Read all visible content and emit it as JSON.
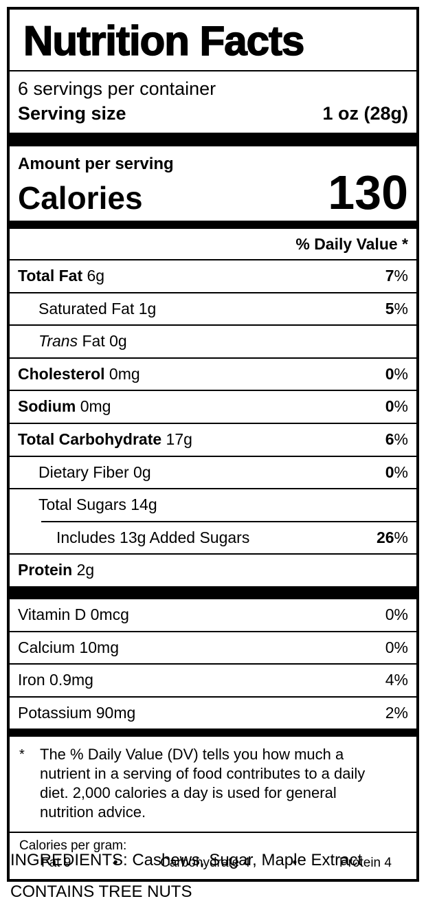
{
  "label": {
    "title": "Nutrition Facts",
    "servings_per_container": "6 servings per container",
    "serving_size": {
      "label": "Serving size",
      "value": "1 oz (28g)"
    },
    "amount_per_serving": "Amount per serving",
    "calories": {
      "label": "Calories",
      "value": "130"
    },
    "daily_value_header": "% Daily Value *",
    "percent_sign": "%",
    "nutrients": [
      {
        "name": "Total Fat",
        "amount": "6g",
        "dv": "7"
      },
      {
        "name": "Saturated Fat",
        "amount": "1g",
        "dv": "5"
      },
      {
        "name_italic": "Trans",
        "name": "Fat",
        "amount": "0g"
      },
      {
        "name": "Cholesterol",
        "amount": "0mg",
        "dv": "0"
      },
      {
        "name": "Sodium",
        "amount": "0mg",
        "dv": "0"
      },
      {
        "name": "Total Carbohydrate",
        "amount": "17g",
        "dv": "6"
      },
      {
        "name": "Dietary Fiber",
        "amount": "0g",
        "dv": "0"
      },
      {
        "name": "Total Sugars",
        "amount": "14g"
      },
      {
        "name": "Includes 13g Added Sugars",
        "dv": "26"
      },
      {
        "name": "Protein",
        "amount": "2g"
      }
    ],
    "vitamins": [
      {
        "name": "Vitamin D",
        "amount": "0mcg",
        "dv": "0"
      },
      {
        "name": "Calcium",
        "amount": "10mg",
        "dv": "0"
      },
      {
        "name": "Iron",
        "amount": "0.9mg",
        "dv": "4"
      },
      {
        "name": "Potassium",
        "amount": "90mg",
        "dv": "2"
      }
    ],
    "footnote": {
      "marker": "*",
      "text": "The % Daily Value (DV) tells you how much a nutrient in a serving of food contributes to a daily diet. 2,000 calories a day is used for general nutrition advice."
    },
    "calories_per_gram": {
      "label": "Calories per gram:",
      "fat": "Fat 9",
      "bullet1": "•",
      "carbohydrate": "Carbohydrate 4",
      "bullet2": "•",
      "protein": "Protein 4"
    }
  },
  "ingredients": "INGREDIENTS: Cashews, Sugar, Maple Extract",
  "allergen": "CONTAINS TREE NUTS"
}
